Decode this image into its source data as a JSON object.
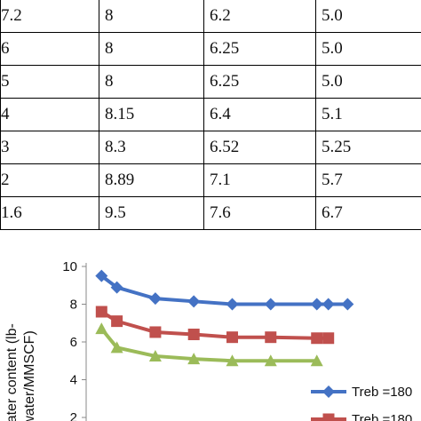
{
  "table": {
    "rows": [
      [
        "7.2",
        "8",
        "6.2",
        "5.0"
      ],
      [
        "6",
        "8",
        "6.25",
        "5.0"
      ],
      [
        "5",
        "8",
        "6.25",
        "5.0"
      ],
      [
        "4",
        "8.15",
        "6.4",
        "5.1"
      ],
      [
        "3",
        "8.3",
        "6.52",
        "5.25"
      ],
      [
        "2",
        "8.89",
        "7.1",
        "5.7"
      ],
      [
        "1.6",
        "9.5",
        "7.6",
        "6.7"
      ]
    ]
  },
  "chart_data": {
    "type": "line",
    "ylabel_line1": "water content (lb-",
    "ylabel_line2": "water/MMSCF)",
    "ylim": [
      2,
      10
    ],
    "yticks": [
      "2",
      "4",
      "6",
      "8",
      "10"
    ],
    "grid": false,
    "legend_position": "right",
    "series": [
      {
        "name": "Treb =180",
        "color": "#4472c4",
        "marker": "diamond",
        "x": [
          1.6,
          2,
          3,
          4,
          5,
          6,
          7.2,
          7.5,
          8
        ],
        "y": [
          9.5,
          8.89,
          8.3,
          8.15,
          8.0,
          8.0,
          8.0,
          8.0,
          8.0
        ]
      },
      {
        "name": "Treb =180",
        "color": "#c0504d",
        "marker": "square",
        "x": [
          1.6,
          2,
          3,
          4,
          5,
          6,
          7.2,
          7.5
        ],
        "y": [
          7.6,
          7.1,
          6.52,
          6.4,
          6.25,
          6.25,
          6.2,
          6.2
        ]
      },
      {
        "name": "",
        "color": "#9bbb59",
        "marker": "triangle",
        "x": [
          1.6,
          2,
          3,
          4,
          5,
          6,
          7.2
        ],
        "y": [
          6.7,
          5.7,
          5.25,
          5.1,
          5.0,
          5.0,
          5.0
        ]
      }
    ]
  }
}
